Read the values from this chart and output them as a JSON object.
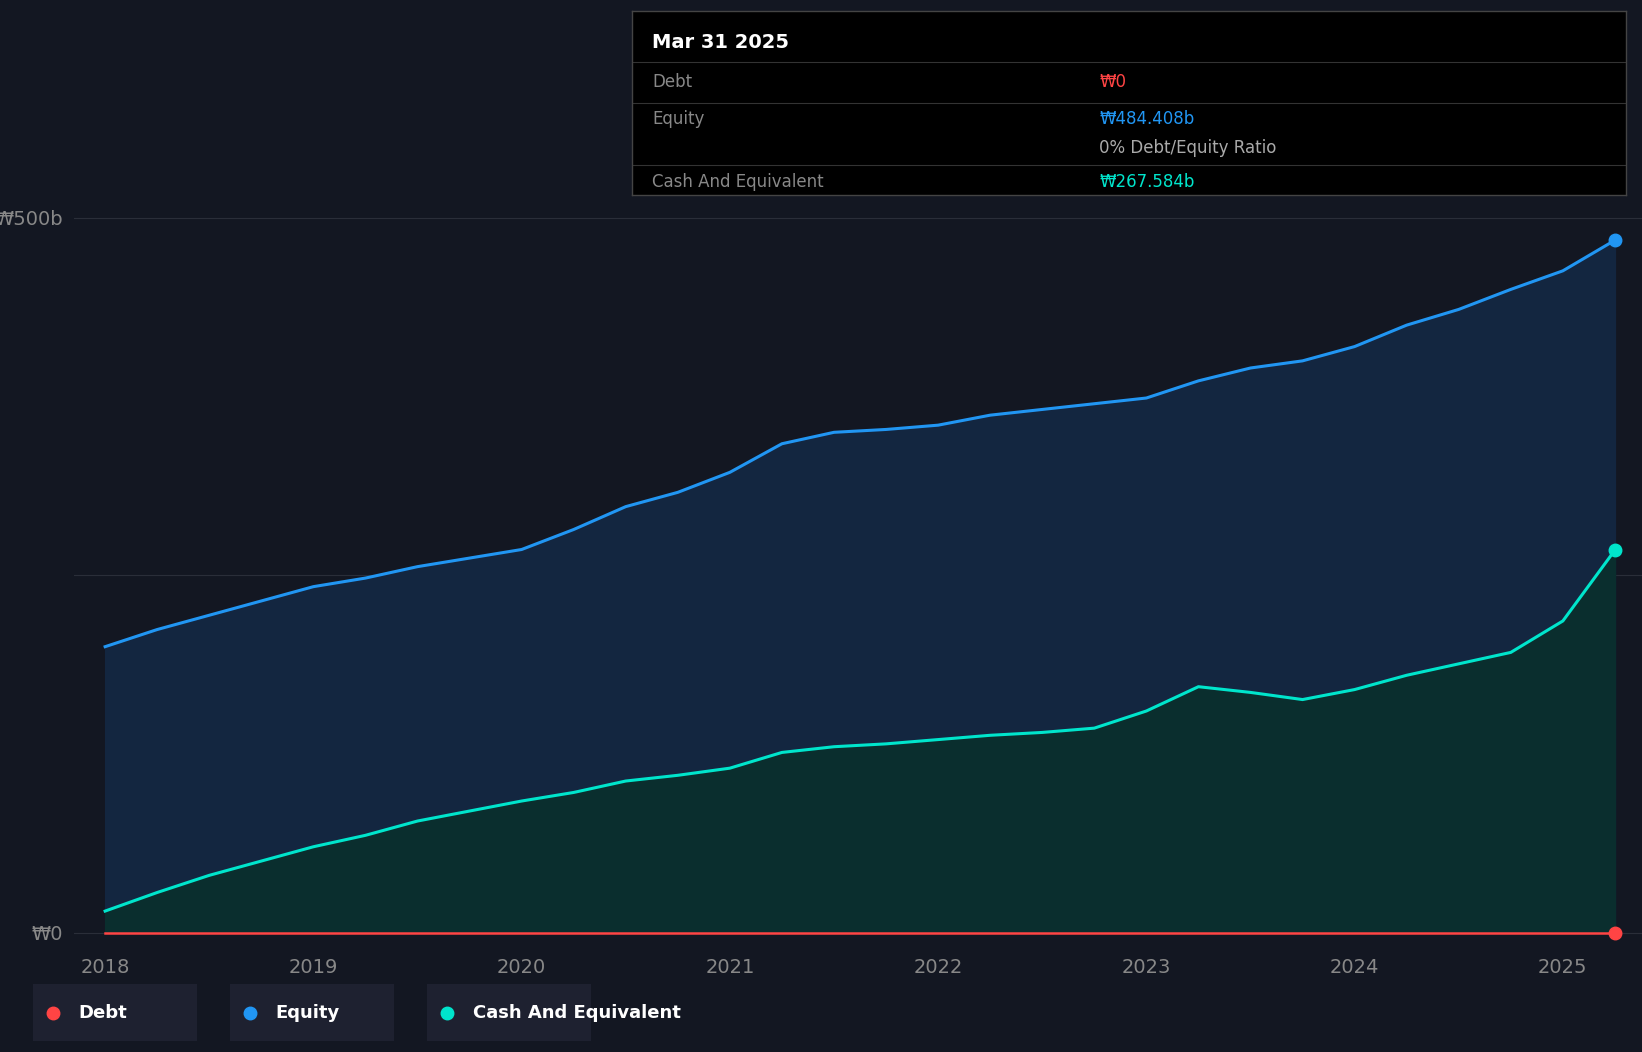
{
  "bg_color": "#131722",
  "chart_bg_color": "#131722",
  "grid_color": "#2a2e39",
  "equity_color": "#2196F3",
  "cash_color": "#00E5CC",
  "debt_color": "#FF4444",
  "equity_fill": "#132640",
  "cash_fill": "#0a2e2e",
  "years": [
    2018.0,
    2018.25,
    2018.5,
    2018.75,
    2019.0,
    2019.25,
    2019.5,
    2019.75,
    2020.0,
    2020.25,
    2020.5,
    2020.75,
    2021.0,
    2021.25,
    2021.5,
    2021.75,
    2022.0,
    2022.25,
    2022.5,
    2022.75,
    2023.0,
    2023.25,
    2023.5,
    2023.75,
    2024.0,
    2024.25,
    2024.5,
    2024.75,
    2025.0,
    2025.25
  ],
  "equity": [
    200,
    212,
    222,
    232,
    242,
    248,
    256,
    262,
    268,
    282,
    298,
    308,
    322,
    342,
    350,
    352,
    355,
    362,
    366,
    370,
    374,
    386,
    395,
    400,
    410,
    425,
    436,
    450,
    463,
    484.408
  ],
  "cash": [
    15,
    28,
    40,
    50,
    60,
    68,
    78,
    85,
    92,
    98,
    106,
    110,
    115,
    126,
    130,
    132,
    135,
    138,
    140,
    143,
    155,
    172,
    168,
    163,
    170,
    180,
    188,
    196,
    218,
    267.584
  ],
  "debt": [
    0,
    0,
    0,
    0,
    0,
    0,
    0,
    0,
    0,
    0,
    0,
    0,
    0,
    0,
    0,
    0,
    0,
    0,
    0,
    0,
    0,
    0,
    0,
    0,
    0,
    0,
    0,
    0,
    0,
    0
  ],
  "ylim": [
    -10,
    520
  ],
  "xlim_left": 2017.85,
  "xlim_right": 2025.38,
  "ytick_positions": [
    0,
    250,
    500
  ],
  "ytick_labels": [
    "₩0",
    "",
    "₩500b"
  ],
  "xticks": [
    2018,
    2019,
    2020,
    2021,
    2022,
    2023,
    2024,
    2025
  ],
  "tooltip_title": "Mar 31 2025",
  "tooltip_rows": [
    {
      "label": "Debt",
      "value": "₩0",
      "value_color": "#FF4444"
    },
    {
      "label": "Equity",
      "value": "₩484.408b",
      "value_color": "#2196F3"
    },
    {
      "label": null,
      "value": "0% Debt/Equity Ratio",
      "value_color": "#888888"
    },
    {
      "label": "Cash And Equivalent",
      "value": "₩267.584b",
      "value_color": "#00E5CC"
    }
  ],
  "legend_items": [
    {
      "label": "Debt",
      "color": "#FF4444"
    },
    {
      "label": "Equity",
      "color": "#2196F3"
    },
    {
      "label": "Cash And Equivalent",
      "color": "#00E5CC"
    }
  ]
}
